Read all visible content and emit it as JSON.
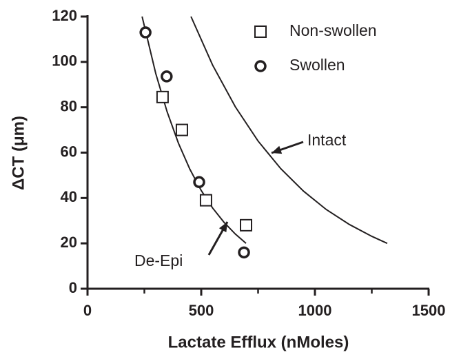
{
  "chart_data": {
    "type": "scatter",
    "x_label": "Lactate Efflux (nMoles)",
    "y_label": "ΔCT (μm)",
    "xlim": [
      0,
      1500
    ],
    "xticks": [
      0,
      500,
      1000,
      1500
    ],
    "xminorticks": [
      250,
      750,
      1250
    ],
    "ylim": [
      0,
      120
    ],
    "yticks": [
      0,
      20,
      40,
      60,
      80,
      100,
      120
    ],
    "series": [
      {
        "name": "Non-swollen",
        "marker": "square",
        "color": "#231f20",
        "x": [
          330,
          415,
          521,
          697
        ],
        "values": [
          84.5,
          70,
          39,
          28
        ]
      },
      {
        "name": "Swollen",
        "marker": "circle",
        "color": "#231f20",
        "x": [
          255,
          348,
          491,
          688
        ],
        "values": [
          113,
          93.6,
          47,
          16
        ]
      }
    ],
    "curves": [
      {
        "label": "De-Epi",
        "color": "#231f20",
        "x": [
          240,
          300,
          350,
          400,
          450,
          500,
          550,
          600,
          650,
          697
        ],
        "values": [
          120,
          94.9,
          78.0,
          64.1,
          52.7,
          43.3,
          35.6,
          29.3,
          24.1,
          20
        ]
      },
      {
        "label": "Intact",
        "color": "#231f20",
        "x": [
          455,
          550,
          650,
          750,
          850,
          950,
          1050,
          1150,
          1250,
          1318
        ],
        "values": [
          120,
          98.6,
          80.2,
          65.1,
          52.9,
          43.0,
          34.9,
          28.4,
          23.1,
          20
        ]
      }
    ]
  }
}
